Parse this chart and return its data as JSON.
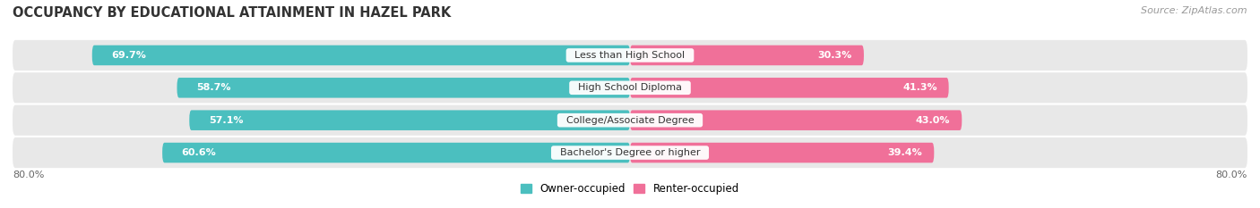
{
  "title": "OCCUPANCY BY EDUCATIONAL ATTAINMENT IN HAZEL PARK",
  "source": "Source: ZipAtlas.com",
  "categories": [
    "Less than High School",
    "High School Diploma",
    "College/Associate Degree",
    "Bachelor's Degree or higher"
  ],
  "owner_values": [
    69.7,
    58.7,
    57.1,
    60.6
  ],
  "renter_values": [
    30.3,
    41.3,
    43.0,
    39.4
  ],
  "owner_color": "#4BBFBF",
  "renter_color": "#F07099",
  "owner_label": "Owner-occupied",
  "renter_label": "Renter-occupied",
  "total_width": 100.0,
  "axis_left_label": "80.0%",
  "axis_right_label": "80.0%",
  "bar_height": 0.62,
  "row_bg_color": "#e8e8e8",
  "title_fontsize": 10.5,
  "source_fontsize": 8,
  "label_fontsize": 8,
  "value_fontsize": 8,
  "legend_fontsize": 8.5,
  "axis_label_fontsize": 8
}
